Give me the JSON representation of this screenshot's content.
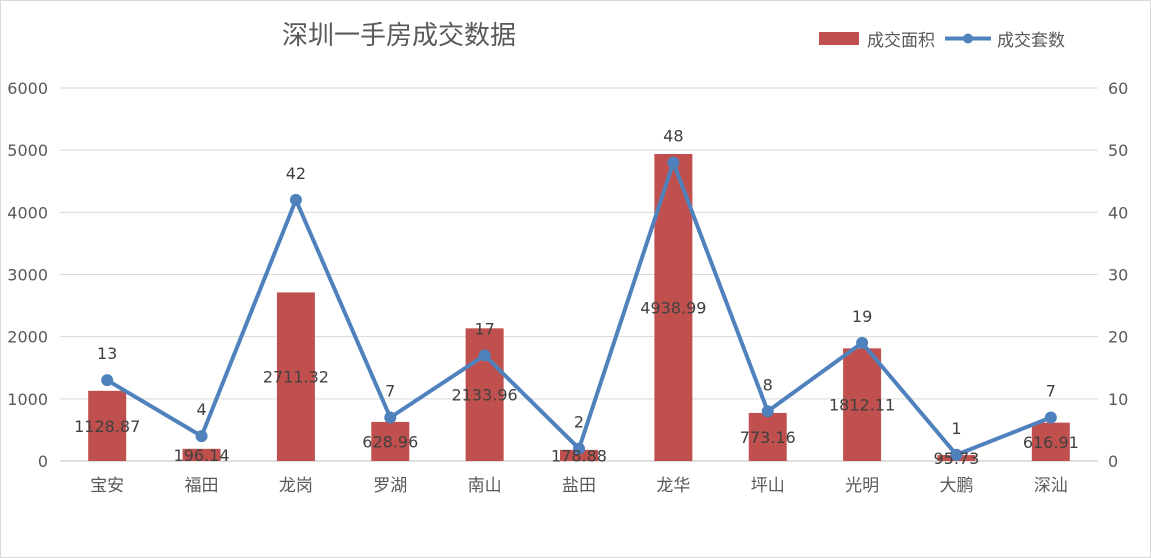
{
  "chart_data": {
    "type": "bar",
    "title": "深圳一手房成交数据",
    "categories": [
      "宝安",
      "福田",
      "龙岗",
      "罗湖",
      "南山",
      "盐田",
      "龙华",
      "坪山",
      "光明",
      "大鹏",
      "深汕"
    ],
    "series": [
      {
        "name": "成交面积",
        "type": "bar",
        "axis": "left",
        "color": "#c0504d",
        "values": [
          1128.87,
          196.14,
          2711.32,
          628.96,
          2133.96,
          178.88,
          4938.99,
          773.16,
          1812.11,
          95.73,
          616.91
        ],
        "labels": [
          "1128.87",
          "196.14",
          "2711.32",
          "628.96",
          "2133.96",
          "178.88",
          "4938.99",
          "773.16",
          "1812.11",
          "95.73",
          "616.91"
        ]
      },
      {
        "name": "成交套数",
        "type": "line",
        "axis": "right",
        "color": "#4f81bd",
        "values": [
          13,
          4,
          42,
          7,
          17,
          2,
          48,
          8,
          19,
          1,
          7
        ],
        "labels": [
          "13",
          "4",
          "42",
          "7",
          "17",
          "2",
          "48",
          "8",
          "19",
          "1",
          "7"
        ]
      }
    ],
    "y_left": {
      "ylim": [
        0,
        6000
      ],
      "ticks": [
        "0",
        "1000",
        "2000",
        "3000",
        "4000",
        "5000",
        "6000"
      ]
    },
    "y_right": {
      "ylim": [
        0,
        60
      ],
      "ticks": [
        "0",
        "10",
        "20",
        "30",
        "40",
        "50",
        "60"
      ]
    },
    "grid": true,
    "legend_position": "top-right"
  }
}
